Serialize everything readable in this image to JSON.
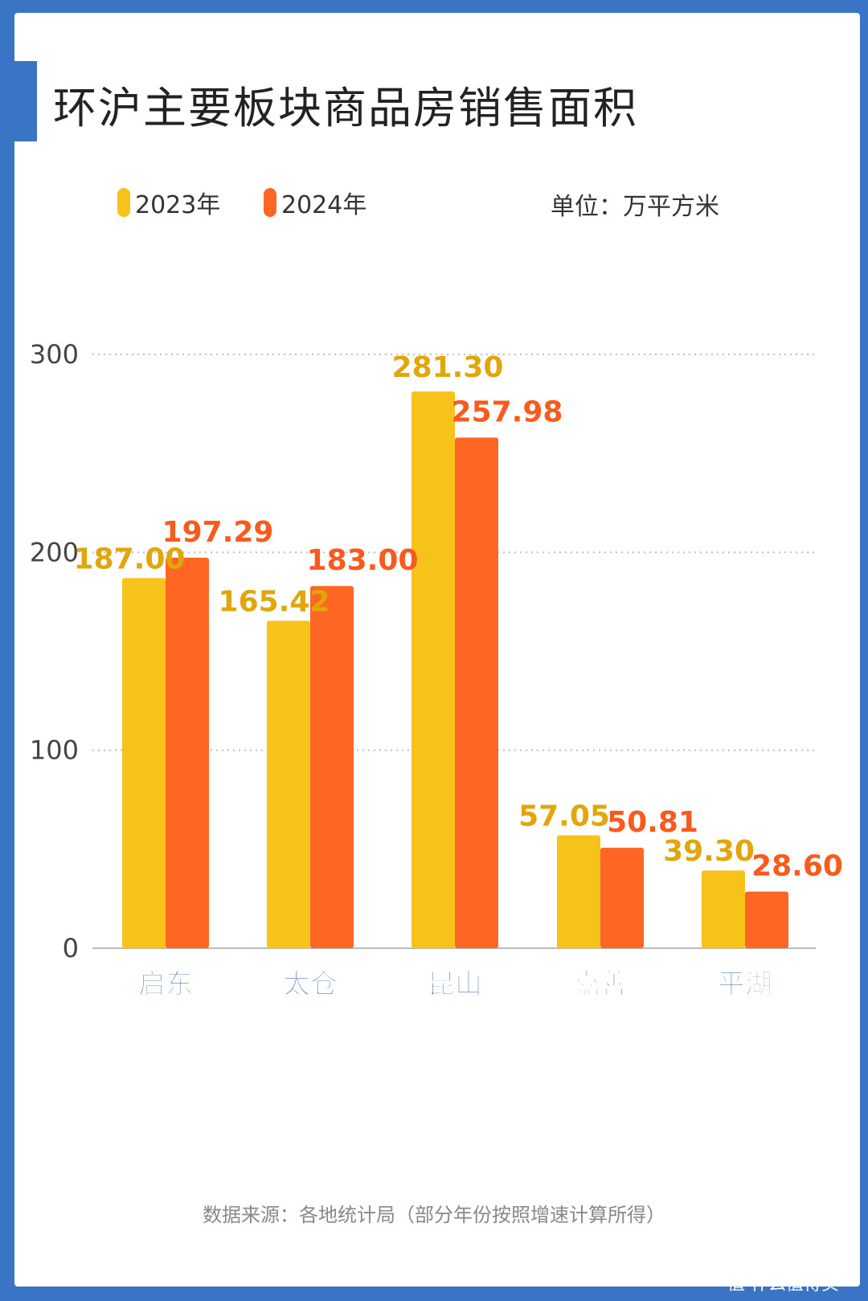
{
  "title": "环沪主要板块商品房销售面积",
  "unit": "单位：万平方米",
  "source": "数据来源：各地统计局（部分年份按照增速计算所得）",
  "watermark": "值 什么值得买",
  "colors": {
    "frame": "#3a74c4",
    "series_2023": "#f7c21a",
    "series_2024": "#fe6723",
    "label_2023": "#e0a60a",
    "label_2024": "#fa5a1e",
    "category_text": "#2b5aa0"
  },
  "chart_data": {
    "type": "bar",
    "categories": [
      "启东",
      "太仓",
      "昆山",
      "嘉善",
      "平湖"
    ],
    "series": [
      {
        "name": "2023年",
        "values": [
          187.0,
          165.42,
          281.3,
          57.05,
          39.3
        ]
      },
      {
        "name": "2024年",
        "values": [
          197.29,
          183.0,
          257.98,
          50.81,
          28.6
        ]
      }
    ],
    "value_labels": [
      [
        "187.00",
        "165.42",
        "281.30",
        "57.05",
        "39.30"
      ],
      [
        "197.29",
        "183.00",
        "257.98",
        "50.81",
        "28.60"
      ]
    ],
    "yticks": [
      "0",
      "100",
      "200",
      "300"
    ],
    "ylim": [
      0,
      300
    ],
    "grid": true,
    "legend_position": "top-left"
  }
}
